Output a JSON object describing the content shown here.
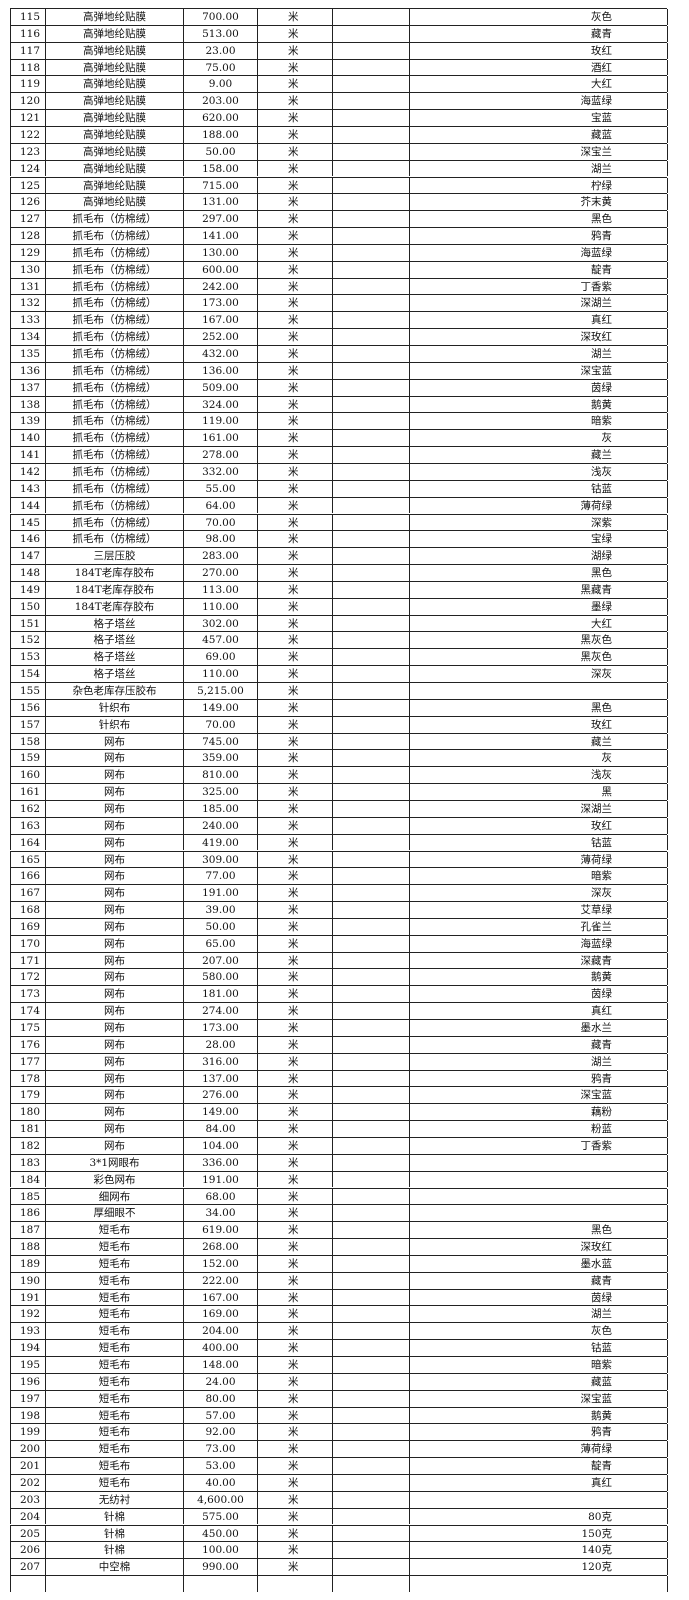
{
  "table": {
    "rows": [
      {
        "no": "115",
        "name": "高弹地纶贴膜",
        "qty": "700.00",
        "unit": "米",
        "color": "灰色"
      },
      {
        "no": "116",
        "name": "高弹地纶贴膜",
        "qty": "513.00",
        "unit": "米",
        "color": "藏青"
      },
      {
        "no": "117",
        "name": "高弹地纶贴膜",
        "qty": "23.00",
        "unit": "米",
        "color": "玫红"
      },
      {
        "no": "118",
        "name": "高弹地纶贴膜",
        "qty": "75.00",
        "unit": "米",
        "color": "酒红"
      },
      {
        "no": "119",
        "name": "高弹地纶贴膜",
        "qty": "9.00",
        "unit": "米",
        "color": "大红"
      },
      {
        "no": "120",
        "name": "高弹地纶贴膜",
        "qty": "203.00",
        "unit": "米",
        "color": "海蓝绿"
      },
      {
        "no": "121",
        "name": "高弹地纶贴膜",
        "qty": "620.00",
        "unit": "米",
        "color": "宝蓝"
      },
      {
        "no": "122",
        "name": "高弹地纶贴膜",
        "qty": "188.00",
        "unit": "米",
        "color": "藏蓝"
      },
      {
        "no": "123",
        "name": "高弹地纶贴膜",
        "qty": "50.00",
        "unit": "米",
        "color": "深宝兰"
      },
      {
        "no": "124",
        "name": "高弹地纶贴膜",
        "qty": "158.00",
        "unit": "米",
        "color": "湖兰"
      },
      {
        "no": "125",
        "name": "高弹地纶贴膜",
        "qty": "715.00",
        "unit": "米",
        "color": "柠绿"
      },
      {
        "no": "126",
        "name": "高弹地纶贴膜",
        "qty": "131.00",
        "unit": "米",
        "color": "芥末黄"
      },
      {
        "no": "127",
        "name": "抓毛布（仿棉绒）",
        "qty": "297.00",
        "unit": "米",
        "color": "黑色"
      },
      {
        "no": "128",
        "name": "抓毛布（仿棉绒）",
        "qty": "141.00",
        "unit": "米",
        "color": "鸦青"
      },
      {
        "no": "129",
        "name": "抓毛布（仿棉绒）",
        "qty": "130.00",
        "unit": "米",
        "color": "海蓝绿"
      },
      {
        "no": "130",
        "name": "抓毛布（仿棉绒）",
        "qty": "600.00",
        "unit": "米",
        "color": "靛青"
      },
      {
        "no": "131",
        "name": "抓毛布（仿棉绒）",
        "qty": "242.00",
        "unit": "米",
        "color": "丁香紫"
      },
      {
        "no": "132",
        "name": "抓毛布（仿棉绒）",
        "qty": "173.00",
        "unit": "米",
        "color": "深湖兰"
      },
      {
        "no": "133",
        "name": "抓毛布（仿棉绒）",
        "qty": "167.00",
        "unit": "米",
        "color": "真红"
      },
      {
        "no": "134",
        "name": "抓毛布（仿棉绒）",
        "qty": "252.00",
        "unit": "米",
        "color": "深玫红"
      },
      {
        "no": "135",
        "name": "抓毛布（仿棉绒）",
        "qty": "432.00",
        "unit": "米",
        "color": "湖兰"
      },
      {
        "no": "136",
        "name": "抓毛布（仿棉绒）",
        "qty": "136.00",
        "unit": "米",
        "color": "深宝蓝"
      },
      {
        "no": "137",
        "name": "抓毛布（仿棉绒）",
        "qty": "509.00",
        "unit": "米",
        "color": "茵绿"
      },
      {
        "no": "138",
        "name": "抓毛布（仿棉绒）",
        "qty": "324.00",
        "unit": "米",
        "color": "鹅黄"
      },
      {
        "no": "139",
        "name": "抓毛布（仿棉绒）",
        "qty": "119.00",
        "unit": "米",
        "color": "暗紫"
      },
      {
        "no": "140",
        "name": "抓毛布（仿棉绒）",
        "qty": "161.00",
        "unit": "米",
        "color": "灰"
      },
      {
        "no": "141",
        "name": "抓毛布（仿棉绒）",
        "qty": "278.00",
        "unit": "米",
        "color": "藏兰"
      },
      {
        "no": "142",
        "name": "抓毛布（仿棉绒）",
        "qty": "332.00",
        "unit": "米",
        "color": "浅灰"
      },
      {
        "no": "143",
        "name": "抓毛布（仿棉绒）",
        "qty": "55.00",
        "unit": "米",
        "color": "钴蓝"
      },
      {
        "no": "144",
        "name": "抓毛布（仿棉绒）",
        "qty": "64.00",
        "unit": "米",
        "color": "薄荷绿"
      },
      {
        "no": "145",
        "name": "抓毛布（仿棉绒）",
        "qty": "70.00",
        "unit": "米",
        "color": "深紫"
      },
      {
        "no": "146",
        "name": "抓毛布（仿棉绒）",
        "qty": "98.00",
        "unit": "米",
        "color": "宝绿"
      },
      {
        "no": "147",
        "name": "三层压胶",
        "qty": "283.00",
        "unit": "米",
        "color": "湖绿"
      },
      {
        "no": "148",
        "name": "184T老库存胶布",
        "qty": "270.00",
        "unit": "米",
        "color": "黑色"
      },
      {
        "no": "149",
        "name": "184T老库存胶布",
        "qty": "113.00",
        "unit": "米",
        "color": "黑藏青"
      },
      {
        "no": "150",
        "name": "184T老库存胶布",
        "qty": "110.00",
        "unit": "米",
        "color": "墨绿"
      },
      {
        "no": "151",
        "name": "格子塔丝",
        "qty": "302.00",
        "unit": "米",
        "color": "大红"
      },
      {
        "no": "152",
        "name": "格子塔丝",
        "qty": "457.00",
        "unit": "米",
        "color": "黑灰色"
      },
      {
        "no": "153",
        "name": "格子塔丝",
        "qty": "69.00",
        "unit": "米",
        "color": "黑灰色"
      },
      {
        "no": "154",
        "name": "格子塔丝",
        "qty": "110.00",
        "unit": "米",
        "color": "深灰"
      },
      {
        "no": "155",
        "name": "杂色老库存压胶布",
        "qty": "5,215.00",
        "unit": "米"
      },
      {
        "no": "156",
        "name": "针织布",
        "qty": "149.00",
        "unit": "米",
        "color": "黑色"
      },
      {
        "no": "157",
        "name": "针织布",
        "qty": "70.00",
        "unit": "米",
        "color": "玫红"
      },
      {
        "no": "158",
        "name": "网布",
        "qty": "745.00",
        "unit": "米",
        "color": "藏兰"
      },
      {
        "no": "159",
        "name": "网布",
        "qty": "359.00",
        "unit": "米",
        "color": "灰"
      },
      {
        "no": "160",
        "name": "网布",
        "qty": "810.00",
        "unit": "米",
        "color": "浅灰"
      },
      {
        "no": "161",
        "name": "网布",
        "qty": "325.00",
        "unit": "米",
        "color": "黑"
      },
      {
        "no": "162",
        "name": "网布",
        "qty": "185.00",
        "unit": "米",
        "color": "深湖兰"
      },
      {
        "no": "163",
        "name": "网布",
        "qty": "240.00",
        "unit": "米",
        "color": "玫红"
      },
      {
        "no": "164",
        "name": "网布",
        "qty": "419.00",
        "unit": "米",
        "color": "钴蓝"
      },
      {
        "no": "165",
        "name": "网布",
        "qty": "309.00",
        "unit": "米",
        "color": "薄荷绿"
      },
      {
        "no": "166",
        "name": "网布",
        "qty": "77.00",
        "unit": "米",
        "color": "暗紫"
      },
      {
        "no": "167",
        "name": "网布",
        "qty": "191.00",
        "unit": "米",
        "color": "深灰"
      },
      {
        "no": "168",
        "name": "网布",
        "qty": "39.00",
        "unit": "米",
        "color": "艾草绿"
      },
      {
        "no": "169",
        "name": "网布",
        "qty": "50.00",
        "unit": "米",
        "color": "孔雀兰"
      },
      {
        "no": "170",
        "name": "网布",
        "qty": "65.00",
        "unit": "米",
        "color": "海蓝绿"
      },
      {
        "no": "171",
        "name": "网布",
        "qty": "207.00",
        "unit": "米",
        "color": "深藏青"
      },
      {
        "no": "172",
        "name": "网布",
        "qty": "580.00",
        "unit": "米",
        "color": "鹅黄"
      },
      {
        "no": "173",
        "name": "网布",
        "qty": "181.00",
        "unit": "米",
        "color": "茵绿"
      },
      {
        "no": "174",
        "name": "网布",
        "qty": "274.00",
        "unit": "米",
        "color": "真红"
      },
      {
        "no": "175",
        "name": "网布",
        "qty": "173.00",
        "unit": "米",
        "color": "墨水兰"
      },
      {
        "no": "176",
        "name": "网布",
        "qty": "28.00",
        "unit": "米",
        "color": "藏青"
      },
      {
        "no": "177",
        "name": "网布",
        "qty": "316.00",
        "unit": "米",
        "color": "湖兰"
      },
      {
        "no": "178",
        "name": "网布",
        "qty": "137.00",
        "unit": "米",
        "color": "鸦青"
      },
      {
        "no": "179",
        "name": "网布",
        "qty": "276.00",
        "unit": "米",
        "color": "深宝蓝"
      },
      {
        "no": "180",
        "name": "网布",
        "qty": "149.00",
        "unit": "米",
        "color": "藕粉"
      },
      {
        "no": "181",
        "name": "网布",
        "qty": "84.00",
        "unit": "米",
        "color": "粉蓝"
      },
      {
        "no": "182",
        "name": "网布",
        "qty": "104.00",
        "unit": "米",
        "color": "丁香紫"
      },
      {
        "no": "183",
        "name": "3*1网眼布",
        "qty": "336.00",
        "unit": "米"
      },
      {
        "no": "184",
        "name": "彩色网布",
        "qty": "191.00",
        "unit": "米"
      },
      {
        "no": "185",
        "name": "细网布",
        "qty": "68.00",
        "unit": "米"
      },
      {
        "no": "186",
        "name": "厚细眼不",
        "qty": "34.00",
        "unit": "米"
      },
      {
        "no": "187",
        "name": "短毛布",
        "qty": "619.00",
        "unit": "米",
        "color": "黑色"
      },
      {
        "no": "188",
        "name": "短毛布",
        "qty": "268.00",
        "unit": "米",
        "color": "深玫红"
      },
      {
        "no": "189",
        "name": "短毛布",
        "qty": "152.00",
        "unit": "米",
        "color": "墨水蓝"
      },
      {
        "no": "190",
        "name": "短毛布",
        "qty": "222.00",
        "unit": "米",
        "color": "藏青"
      },
      {
        "no": "191",
        "name": "短毛布",
        "qty": "167.00",
        "unit": "米",
        "color": "茵绿"
      },
      {
        "no": "192",
        "name": "短毛布",
        "qty": "169.00",
        "unit": "米",
        "color": "湖兰"
      },
      {
        "no": "193",
        "name": "短毛布",
        "qty": "204.00",
        "unit": "米",
        "color": "灰色"
      },
      {
        "no": "194",
        "name": "短毛布",
        "qty": "400.00",
        "unit": "米",
        "color": "钴蓝"
      },
      {
        "no": "195",
        "name": "短毛布",
        "qty": "148.00",
        "unit": "米",
        "color": "暗紫"
      },
      {
        "no": "196",
        "name": "短毛布",
        "qty": "24.00",
        "unit": "米",
        "color": "藏蓝"
      },
      {
        "no": "197",
        "name": "短毛布",
        "qty": "80.00",
        "unit": "米",
        "color": "深宝蓝"
      },
      {
        "no": "198",
        "name": "短毛布",
        "qty": "57.00",
        "unit": "米",
        "color": "鹅黄"
      },
      {
        "no": "199",
        "name": "短毛布",
        "qty": "92.00",
        "unit": "米",
        "color": "鸦青"
      },
      {
        "no": "200",
        "name": "短毛布",
        "qty": "73.00",
        "unit": "米",
        "color": "薄荷绿"
      },
      {
        "no": "201",
        "name": "短毛布",
        "qty": "53.00",
        "unit": "米",
        "color": "靛青"
      },
      {
        "no": "202",
        "name": "短毛布",
        "qty": "40.00",
        "unit": "米",
        "color": "真红"
      },
      {
        "no": "203",
        "name": "无纺衬",
        "qty": "4,600.00",
        "unit": "米"
      },
      {
        "no": "204",
        "name": "针棉",
        "qty": "575.00",
        "unit": "米",
        "color": "80克"
      },
      {
        "no": "205",
        "name": "针棉",
        "qty": "450.00",
        "unit": "米",
        "color": "150克"
      },
      {
        "no": "206",
        "name": "针棉",
        "qty": "100.00",
        "unit": "米",
        "color": "140克"
      },
      {
        "no": "207",
        "name": "中空棉",
        "qty": "990.00",
        "unit": "米",
        "color": "120克"
      }
    ]
  }
}
